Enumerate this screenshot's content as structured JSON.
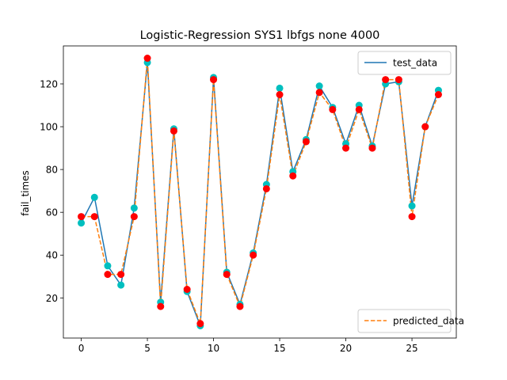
{
  "chart_data": {
    "type": "line",
    "title": "Logistic-Regression SYS1 lbfgs none 4000",
    "xlabel": "",
    "ylabel": "fail_times",
    "xlim": [
      -1.35,
      28.35
    ],
    "ylim": [
      1.25,
      137.75
    ],
    "xticks": [
      0,
      5,
      10,
      15,
      20,
      25
    ],
    "yticks": [
      20,
      40,
      60,
      80,
      100,
      120
    ],
    "grid": false,
    "x": [
      0,
      1,
      2,
      3,
      4,
      5,
      6,
      7,
      8,
      9,
      10,
      11,
      12,
      13,
      14,
      15,
      16,
      17,
      18,
      19,
      20,
      21,
      22,
      23,
      24,
      25,
      26,
      27
    ],
    "series": [
      {
        "name": "test_data",
        "line_color": "#1f77b4",
        "line_style": "solid",
        "marker_color": "#00bfbf",
        "values": [
          55,
          67,
          35,
          26,
          62,
          130,
          18,
          99,
          23,
          7,
          123,
          32,
          17,
          41,
          73,
          118,
          79,
          94,
          119,
          109,
          92,
          110,
          91,
          120,
          121,
          63,
          100,
          117
        ]
      },
      {
        "name": "predicted_data",
        "line_color": "#ff7f0e",
        "line_style": "dashed",
        "marker_color": "#ff0000",
        "values": [
          58,
          58,
          31,
          31,
          58,
          132,
          16,
          98,
          24,
          8,
          122,
          31,
          16,
          40,
          71,
          115,
          77,
          93,
          116,
          108,
          90,
          108,
          90,
          122,
          122,
          58,
          100,
          115
        ]
      }
    ],
    "legends": [
      {
        "location": "upper-right",
        "entries": [
          "test_data"
        ]
      },
      {
        "location": "lower-right",
        "entries": [
          "predicted_data"
        ]
      }
    ]
  }
}
